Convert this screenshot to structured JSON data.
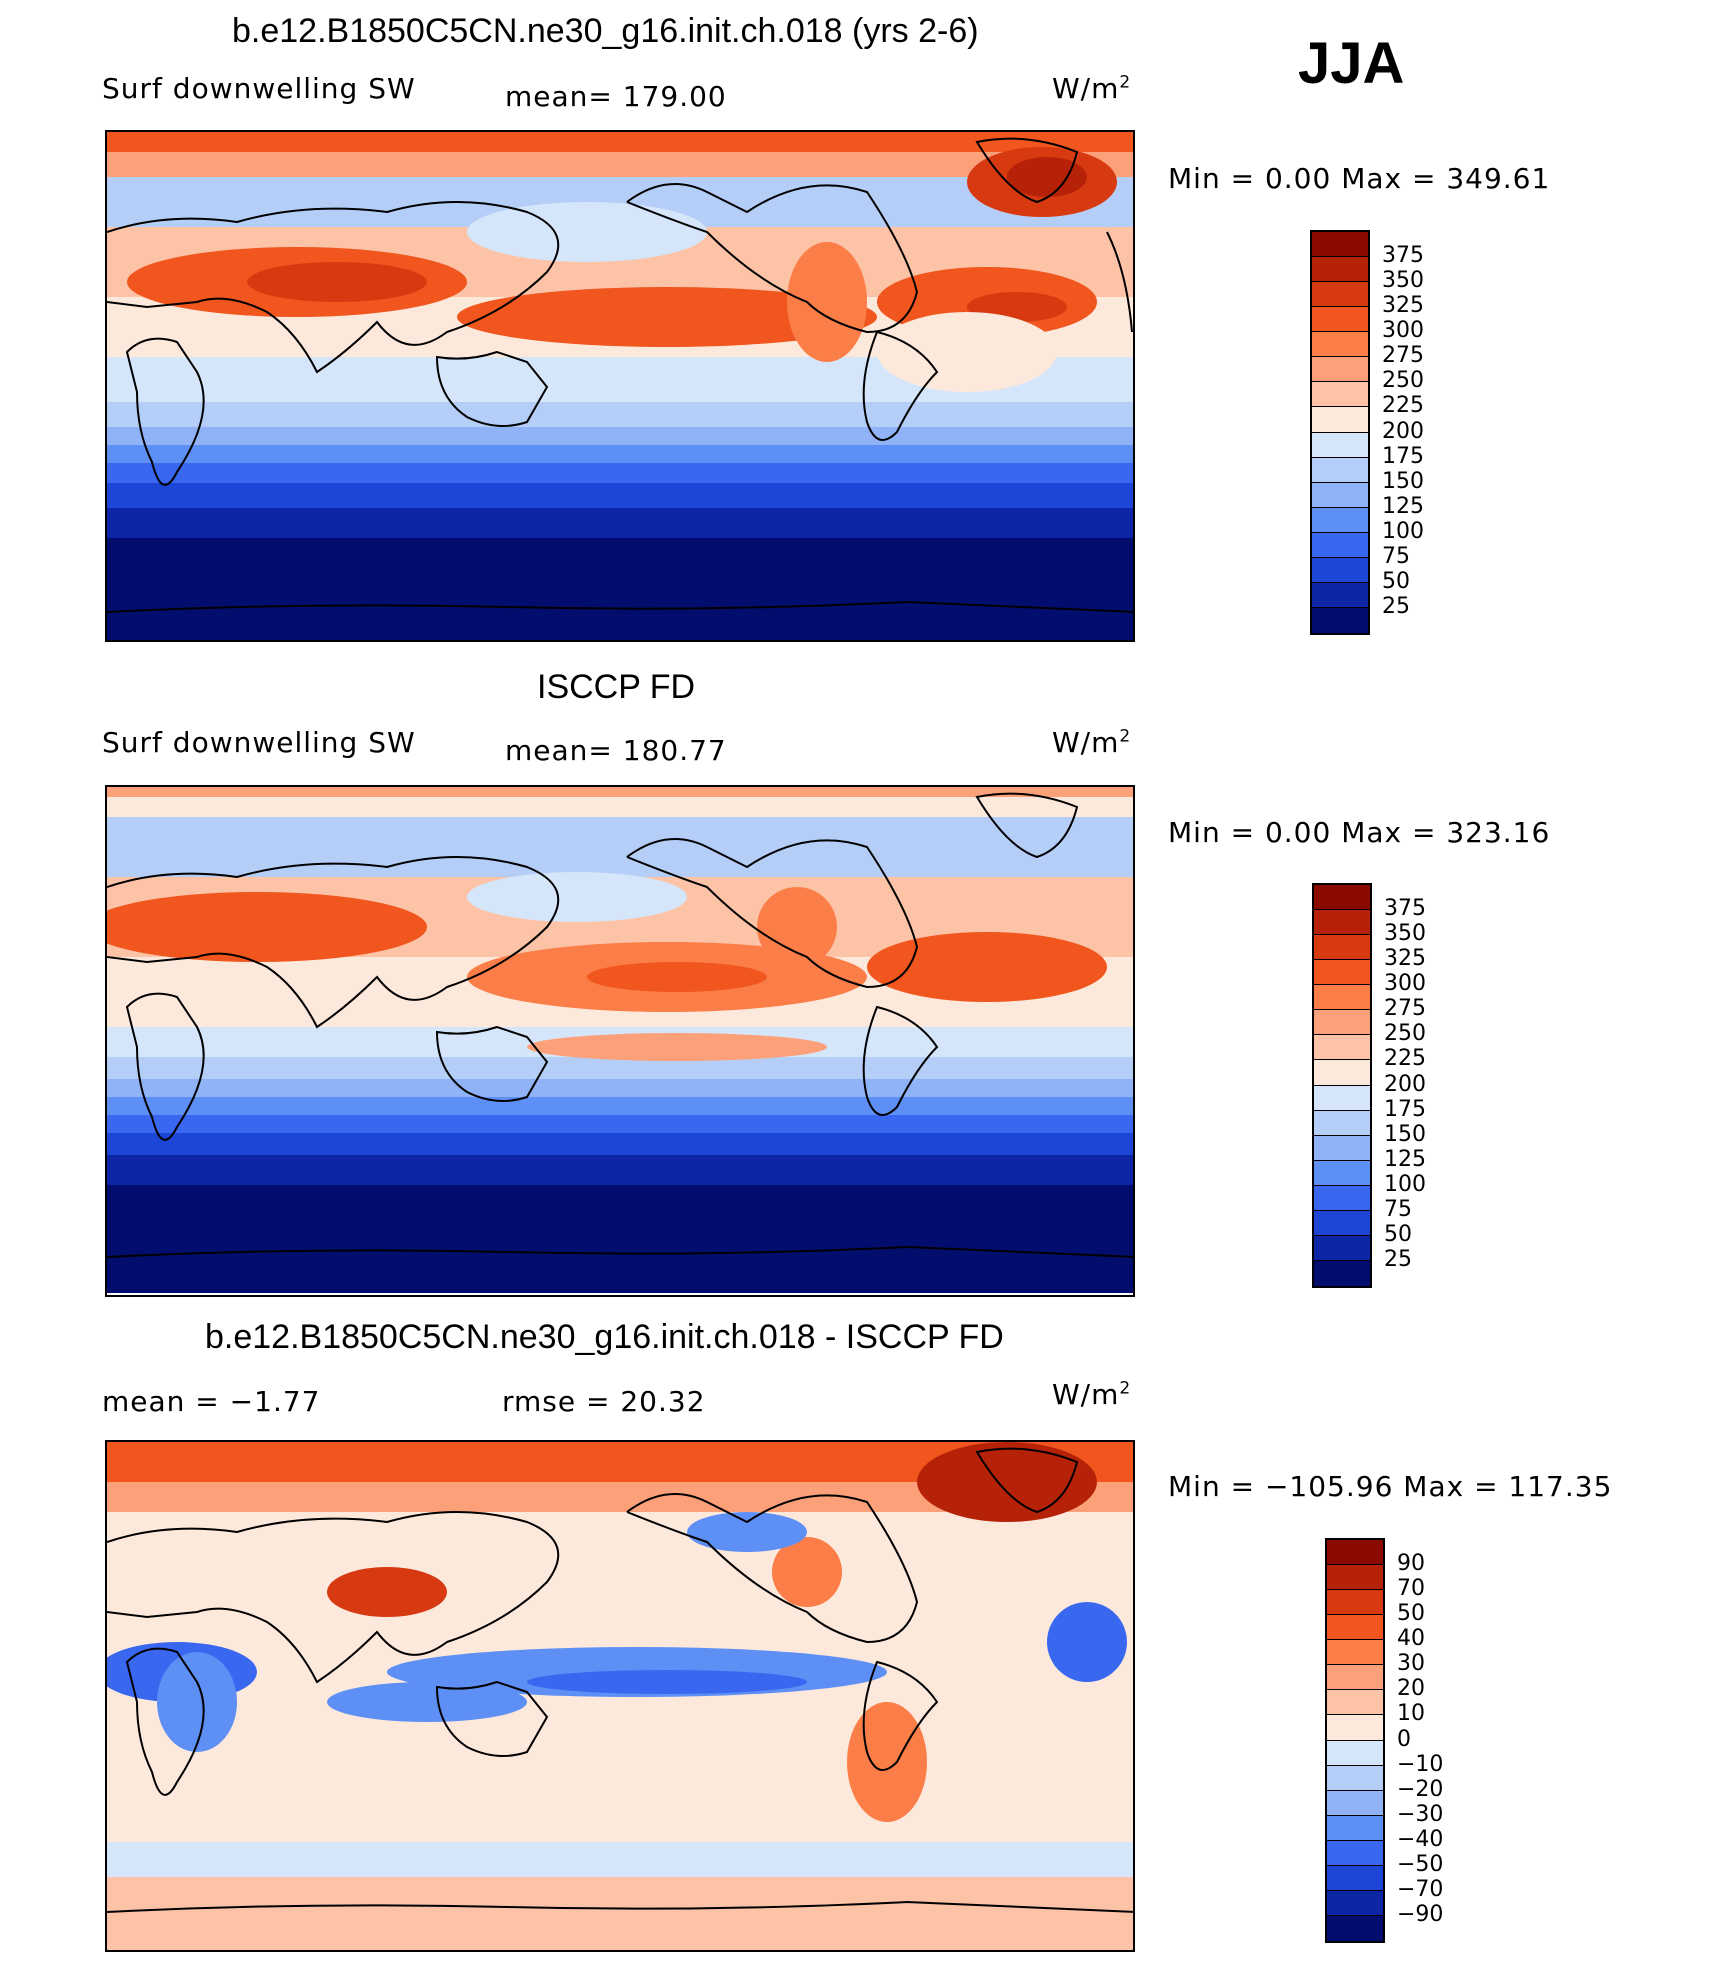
{
  "season": "JJA",
  "panels": [
    {
      "title": "b.e12.B1850C5CN.ne30_g16.init.ch.018 (yrs 2-6)",
      "variable": "Surf downwelling SW",
      "stat1": "mean= 179.00",
      "stat2": "",
      "units_base": "W/m",
      "units_exp": "2",
      "minmax": "Min =     0.00 Max  =  349.61",
      "colorbar": {
        "ticks": [
          "375",
          "350",
          "325",
          "300",
          "275",
          "250",
          "225",
          "200",
          "175",
          "150",
          "125",
          "100",
          "75",
          "50",
          "25"
        ],
        "colors": [
          "#8b0a00",
          "#b52207",
          "#d73a10",
          "#f0561e",
          "#fb7e48",
          "#fca07a",
          "#fcc3a6",
          "#fde9dc",
          "#d5e6fb",
          "#b5cef7",
          "#8fb3f6",
          "#5e8ff5",
          "#3a67f0",
          "#1d45d6",
          "#0c26a6",
          "#020d6e"
        ]
      }
    },
    {
      "title": "ISCCP FD",
      "variable": "Surf downwelling SW",
      "stat1": "mean= 180.77",
      "stat2": "",
      "units_base": "W/m",
      "units_exp": "2",
      "minmax": "Min =     0.00 Max  =  323.16",
      "colorbar": {
        "ticks": [
          "375",
          "350",
          "325",
          "300",
          "275",
          "250",
          "225",
          "200",
          "175",
          "150",
          "125",
          "100",
          "75",
          "50",
          "25"
        ],
        "colors": [
          "#8b0a00",
          "#b52207",
          "#d73a10",
          "#f0561e",
          "#fb7e48",
          "#fca07a",
          "#fcc3a6",
          "#fde9dc",
          "#d5e6fb",
          "#b5cef7",
          "#8fb3f6",
          "#5e8ff5",
          "#3a67f0",
          "#1d45d6",
          "#0c26a6",
          "#020d6e"
        ]
      }
    },
    {
      "title": "b.e12.B1850C5CN.ne30_g16.init.ch.018 - ISCCP FD",
      "variable": "mean =   −1.77",
      "stat1": "rmse =   20.32",
      "stat2": "",
      "units_base": "W/m",
      "units_exp": "2",
      "minmax": "Min = −105.96 Max  =  117.35",
      "colorbar": {
        "ticks": [
          "90",
          "70",
          "50",
          "40",
          "30",
          "20",
          "10",
          "0",
          "−10",
          "−20",
          "−30",
          "−40",
          "−50",
          "−70",
          "−90"
        ],
        "colors": [
          "#8b0a00",
          "#b52207",
          "#d73a10",
          "#f0561e",
          "#fb7e48",
          "#fca07a",
          "#fcc3a6",
          "#fde9dc",
          "#d5e6fb",
          "#b5cef7",
          "#8fb3f6",
          "#5e8ff5",
          "#3a67f0",
          "#1d45d6",
          "#0c26a6",
          "#020d6e"
        ]
      }
    }
  ]
}
